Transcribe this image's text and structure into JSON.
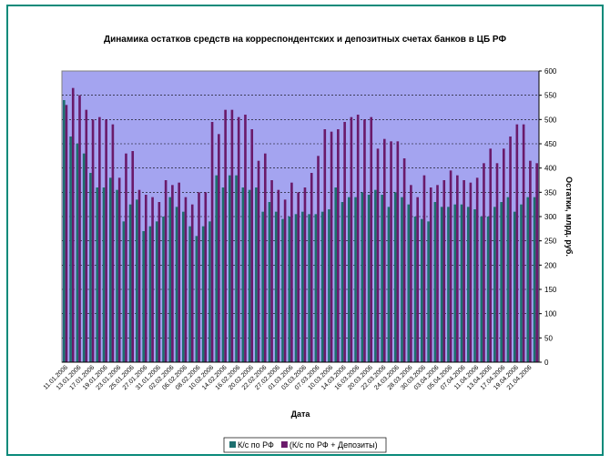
{
  "chart_data": {
    "type": "bar",
    "title": "Динамика остатков средств на корреспондентских и депозитных счетах банков в ЦБ РФ",
    "x_label": "Дата",
    "y_label": "Остатки, млрд. руб.",
    "categories": [
      "11.01.2006",
      null,
      "13.01.2006",
      null,
      "17.01.2006",
      null,
      "19.01.2006",
      null,
      "23.01.2006",
      null,
      "25.01.2006",
      null,
      "27.01.2006",
      null,
      "31.01.2006",
      null,
      "02.02.2006",
      null,
      "06.02.2006",
      null,
      "08.02.2006",
      null,
      "10.02.2006",
      null,
      "14.02.2006",
      null,
      "16.02.2006",
      null,
      "20.02.2006",
      null,
      "22.02.2006",
      null,
      "27.02.2006",
      null,
      "01.03.2006",
      null,
      "03.03.2006",
      null,
      "07.03.2006",
      null,
      "10.03.2006",
      null,
      "14.03.2006",
      null,
      "16.03.2006",
      null,
      "20.03.2006",
      null,
      "22.03.2006",
      null,
      "24.03.2006",
      null,
      "28.03.2006",
      null,
      "30.03.2006",
      null,
      "03.04.2006",
      null,
      "05.04.2006",
      null,
      "07.04.2006",
      null,
      "11.04.2006",
      null,
      "13.04.2006",
      null,
      "17.04.2006",
      null,
      "19.04.2006",
      null,
      "21.04.2006",
      null
    ],
    "series": [
      {
        "name": "К/с по РФ",
        "color": "#1d6f6f",
        "values": [
          540,
          465,
          450,
          430,
          390,
          360,
          360,
          380,
          355,
          290,
          325,
          335,
          270,
          280,
          290,
          300,
          340,
          320,
          310,
          280,
          260,
          280,
          290,
          385,
          360,
          385,
          385,
          360,
          355,
          360,
          310,
          330,
          310,
          295,
          300,
          305,
          310,
          305,
          305,
          310,
          315,
          360,
          330,
          340,
          340,
          350,
          345,
          355,
          345,
          320,
          350,
          340,
          325,
          300,
          295,
          290,
          330,
          320,
          320,
          325,
          325,
          320,
          315,
          300,
          300,
          320,
          330,
          340,
          310,
          325,
          340,
          340
        ]
      },
      {
        "name": "(К/с по РФ + Депозиты)",
        "color": "#6a1a6a",
        "values": [
          530,
          565,
          550,
          520,
          500,
          505,
          500,
          490,
          380,
          430,
          435,
          355,
          345,
          340,
          330,
          375,
          365,
          370,
          340,
          325,
          350,
          350,
          495,
          470,
          520,
          520,
          505,
          510,
          480,
          415,
          430,
          375,
          355,
          335,
          370,
          350,
          360,
          390,
          425,
          480,
          475,
          480,
          495,
          505,
          510,
          500,
          505,
          440,
          460,
          455,
          455,
          420,
          365,
          340,
          385,
          360,
          365,
          375,
          395,
          385,
          375,
          370,
          380,
          410,
          440,
          410,
          440,
          465,
          490,
          490,
          415,
          410
        ]
      }
    ],
    "ylim": [
      0,
      600
    ],
    "yticks": [
      0,
      50,
      100,
      150,
      200,
      250,
      300,
      350,
      400,
      450,
      500,
      550,
      600
    ],
    "grid": true,
    "legend": "bottom",
    "plot_color": "#a4a4f0"
  }
}
